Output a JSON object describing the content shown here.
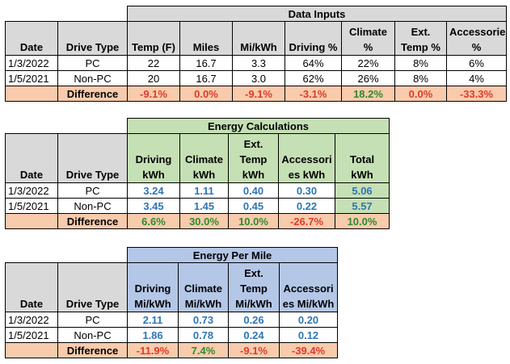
{
  "colors": {
    "header_gray": "#d9d9d9",
    "header_green": "#c5e0b4",
    "header_blue": "#b4c7e7",
    "difference_bg": "#f8cbad",
    "negative": "#e03a2a",
    "positive": "#2e8b2e",
    "value_blue": "#2e75b6"
  },
  "table1": {
    "title": "Data Inputs",
    "headers": [
      "Date",
      "Drive Type",
      "Temp (F)",
      "Miles",
      "Mi/kWh",
      "Driving %",
      "Climate %",
      "Ext. Temp %",
      "Accessories %"
    ],
    "rows": [
      [
        "1/3/2022",
        "PC",
        "22",
        "16.7",
        "3.3",
        "64%",
        "22%",
        "8%",
        "6%"
      ],
      [
        "1/5/2021",
        "Non-PC",
        "20",
        "16.7",
        "3.0",
        "62%",
        "26%",
        "8%",
        "4%"
      ]
    ],
    "difference_label": "Difference",
    "difference": [
      "-9.1%",
      "0.0%",
      "-9.1%",
      "-3.1%",
      "18.2%",
      "0.0%",
      "-33.3%"
    ]
  },
  "table2": {
    "title": "Energy Calculations",
    "headers": [
      "Date",
      "Drive Type",
      "Driving kWh",
      "Climate kWh",
      "Ext. Temp kWh",
      "Accessories kWh",
      "Total kWh"
    ],
    "rows": [
      [
        "1/3/2022",
        "PC",
        "3.24",
        "1.11",
        "0.40",
        "0.30",
        "5.06"
      ],
      [
        "1/5/2021",
        "Non-PC",
        "3.45",
        "1.45",
        "0.45",
        "0.22",
        "5.57"
      ]
    ],
    "difference_label": "Difference",
    "difference": [
      "6.6%",
      "30.0%",
      "10.0%",
      "-26.7%",
      "10.0%"
    ]
  },
  "table3": {
    "title": "Energy Per Mile",
    "headers": [
      "Date",
      "Drive Type",
      "Driving Mi/kWh",
      "Climate Mi/kWh",
      "Ext. Temp Mi/kWh",
      "Accessories Mi/kWh"
    ],
    "rows": [
      [
        "1/3/2022",
        "PC",
        "2.11",
        "0.73",
        "0.26",
        "0.20"
      ],
      [
        "1/5/2021",
        "Non-PC",
        "1.86",
        "0.78",
        "0.24",
        "0.12"
      ]
    ],
    "difference_label": "Difference",
    "difference": [
      "-11.9%",
      "7.4%",
      "-9.1%",
      "-39.4%"
    ]
  }
}
